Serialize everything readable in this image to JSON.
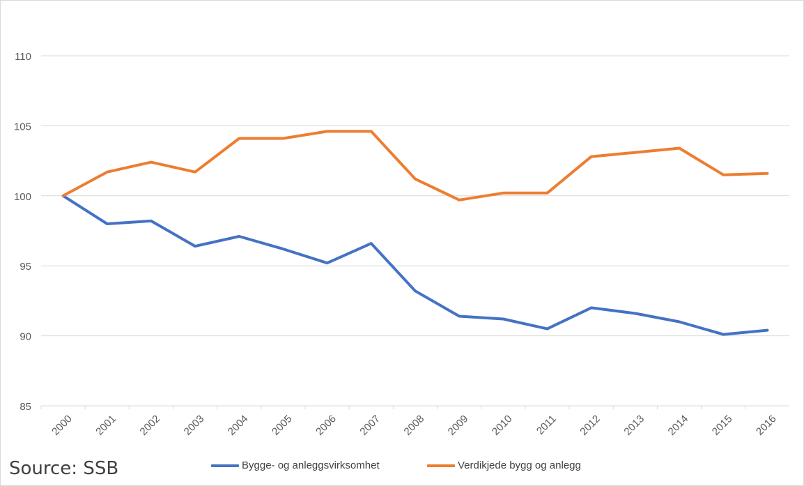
{
  "chart_data": {
    "type": "line",
    "title": "",
    "xlabel": "",
    "ylabel": "",
    "categories": [
      "2000",
      "2001",
      "2002",
      "2003",
      "2004",
      "2005",
      "2006",
      "2007",
      "2008",
      "2009",
      "2010",
      "2011",
      "2012",
      "2013",
      "2014",
      "2015",
      "2016"
    ],
    "ylim": [
      85,
      110
    ],
    "yticks": [
      "85",
      "90",
      "95",
      "100",
      "105",
      "110"
    ],
    "grid": true,
    "legend_position": "bottom",
    "series": [
      {
        "name": "Bygge- og anleggsvirksomhet",
        "color": "#4472C4",
        "values": [
          100,
          98.0,
          98.2,
          96.4,
          97.1,
          96.2,
          95.2,
          96.6,
          93.2,
          91.4,
          91.2,
          90.5,
          92.0,
          91.6,
          91.0,
          90.1,
          90.4
        ]
      },
      {
        "name": "Verdikjede bygg og anlegg",
        "color": "#ED7D31",
        "values": [
          100,
          101.7,
          102.4,
          101.7,
          104.1,
          104.1,
          104.6,
          104.6,
          101.2,
          99.7,
          100.2,
          100.2,
          102.8,
          103.1,
          103.4,
          101.5,
          101.6
        ]
      }
    ]
  },
  "source_label": "Source: SSB"
}
